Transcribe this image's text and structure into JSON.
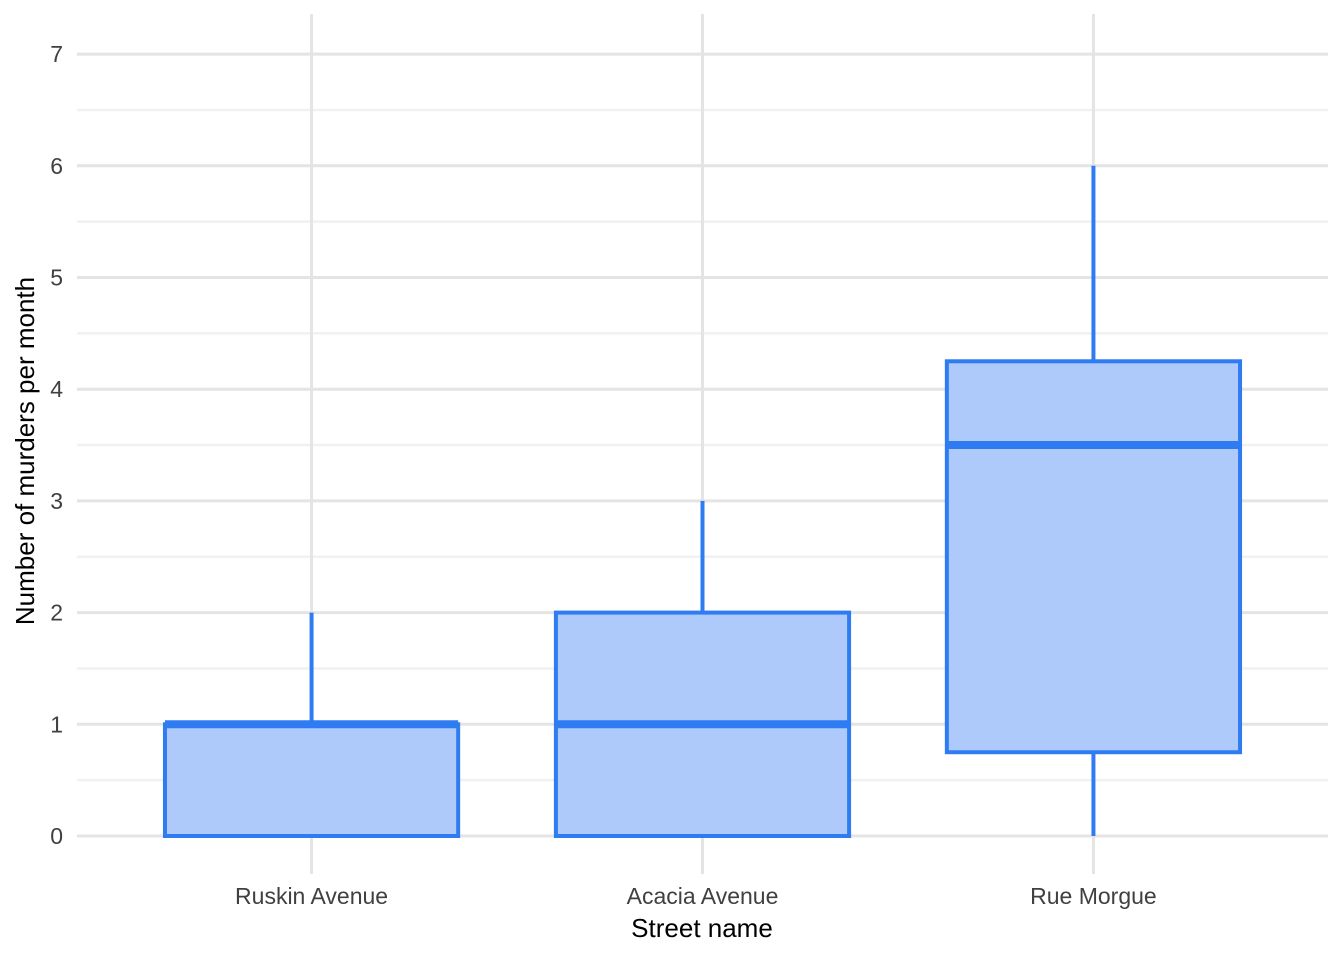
{
  "chart_data": {
    "type": "boxplot",
    "title": "",
    "xlabel": "Street name",
    "ylabel": "Number of murders per month",
    "categories": [
      "Ruskin Avenue",
      "Acacia Avenue",
      "Rue Morgue"
    ],
    "series": [
      {
        "category": "Ruskin Avenue",
        "min": 0,
        "q1": 0,
        "median": 1,
        "q3": 1,
        "max": 2
      },
      {
        "category": "Acacia Avenue",
        "min": 0,
        "q1": 0,
        "median": 1,
        "q3": 2,
        "max": 3
      },
      {
        "category": "Rue Morgue",
        "min": 0,
        "q1": 0.75,
        "median": 3.5,
        "q3": 4.25,
        "max": 6
      }
    ],
    "y_ticks": [
      0,
      1,
      2,
      3,
      4,
      5,
      6,
      7
    ],
    "y_minor_ticks": [
      0.5,
      1.5,
      2.5,
      3.5,
      4.5,
      5.5,
      6.5
    ],
    "ylim": [
      0,
      7
    ],
    "grid": "on",
    "legend_position": "none",
    "colors": {
      "box_fill": "#aecafa",
      "box_stroke": "#2f7cf2",
      "grid_major": "#e4e4e4",
      "grid_minor": "#f1f1f1",
      "grid_category": "#e4e4e4",
      "tick_label": "#404040",
      "axis_title": "#000000",
      "background": "#ffffff"
    }
  }
}
